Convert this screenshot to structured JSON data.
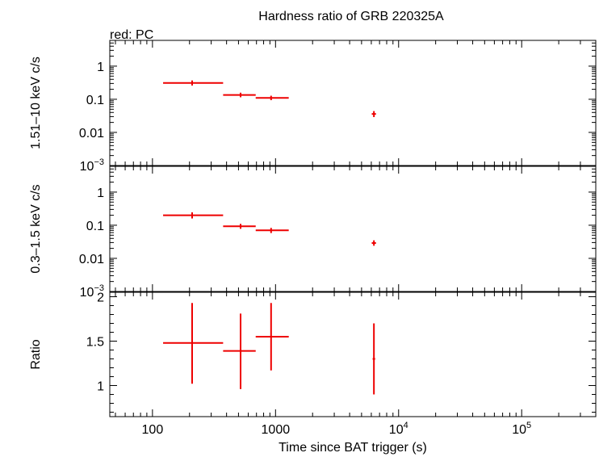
{
  "chart_data": {
    "type": "scatter",
    "title": "Hardness ratio of GRB 220325A",
    "subtitle": "red: PC",
    "xlabel": "Time since BAT trigger (s)",
    "x_scale": "log",
    "xlim": [
      45,
      400000
    ],
    "x_ticks": [
      {
        "value": 100,
        "label": "100"
      },
      {
        "value": 1000,
        "label": "1000"
      },
      {
        "value": 10000,
        "label_base": "10",
        "label_exp": "4"
      },
      {
        "value": 100000,
        "label_base": "10",
        "label_exp": "5"
      }
    ],
    "series_color": "#ee0000",
    "panels": [
      {
        "ylabel": "1.51–10 keV c/s",
        "y_scale": "log",
        "ylim": [
          0.001,
          6
        ],
        "y_ticks": [
          {
            "value": 1,
            "label": "1"
          },
          {
            "value": 0.1,
            "label": "0.1"
          },
          {
            "value": 0.01,
            "label": "0.01"
          },
          {
            "value": 0.001,
            "label_base": "10",
            "label_exp": "−3"
          }
        ],
        "points": [
          {
            "x": 210,
            "xlo": 122,
            "xhi": 375,
            "y": 0.31,
            "ylo": 0.26,
            "yhi": 0.37
          },
          {
            "x": 520,
            "xlo": 375,
            "xhi": 690,
            "y": 0.135,
            "ylo": 0.115,
            "yhi": 0.158
          },
          {
            "x": 920,
            "xlo": 690,
            "xhi": 1280,
            "y": 0.11,
            "ylo": 0.094,
            "yhi": 0.128
          },
          {
            "x": 6300,
            "xlo": 6050,
            "xhi": 6550,
            "y": 0.036,
            "ylo": 0.029,
            "yhi": 0.044
          }
        ]
      },
      {
        "ylabel": "0.3–1.5 keV c/s",
        "y_scale": "log",
        "ylim": [
          0.001,
          6
        ],
        "y_ticks": [
          {
            "value": 1,
            "label": "1"
          },
          {
            "value": 0.1,
            "label": "0.1"
          },
          {
            "value": 0.01,
            "label": "0.01"
          },
          {
            "value": 0.001,
            "label_base": "10",
            "label_exp": "−3"
          }
        ],
        "points": [
          {
            "x": 210,
            "xlo": 122,
            "xhi": 375,
            "y": 0.2,
            "ylo": 0.16,
            "yhi": 0.245
          },
          {
            "x": 520,
            "xlo": 375,
            "xhi": 690,
            "y": 0.093,
            "ylo": 0.078,
            "yhi": 0.11
          },
          {
            "x": 920,
            "xlo": 690,
            "xhi": 1280,
            "y": 0.07,
            "ylo": 0.058,
            "yhi": 0.083
          },
          {
            "x": 6300,
            "xlo": 6050,
            "xhi": 6550,
            "y": 0.029,
            "ylo": 0.024,
            "yhi": 0.035
          }
        ]
      },
      {
        "ylabel": "Ratio",
        "y_scale": "linear",
        "ylim": [
          0.65,
          2.05
        ],
        "y_ticks": [
          {
            "value": 1,
            "label": "1"
          },
          {
            "value": 1.5,
            "label": "1.5"
          },
          {
            "value": 2,
            "label": "2"
          }
        ],
        "y_minor_step": 0.1,
        "points": [
          {
            "x": 210,
            "xlo": 122,
            "xhi": 375,
            "y": 1.48,
            "ylo": 1.02,
            "yhi": 1.93
          },
          {
            "x": 520,
            "xlo": 375,
            "xhi": 690,
            "y": 1.39,
            "ylo": 0.96,
            "yhi": 1.81
          },
          {
            "x": 920,
            "xlo": 690,
            "xhi": 1280,
            "y": 1.55,
            "ylo": 1.17,
            "yhi": 1.93
          },
          {
            "x": 6300,
            "xlo": 6150,
            "xhi": 6450,
            "y": 1.3,
            "ylo": 0.9,
            "yhi": 1.7
          }
        ]
      }
    ]
  }
}
